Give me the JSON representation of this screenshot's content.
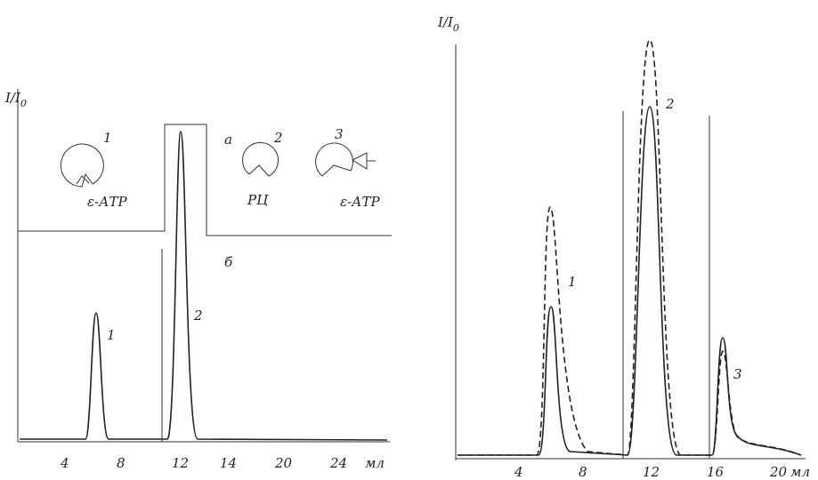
{
  "left_panel": {
    "y_label": "I/I",
    "y_label_sub": "0",
    "panel_a_label": "а",
    "panel_b_label": "б",
    "schemes": [
      {
        "number": "1",
        "label": "ε-АТР"
      },
      {
        "number": "2",
        "label": "РЦ"
      },
      {
        "number": "3",
        "label": "ε-АТР"
      }
    ],
    "peak_labels": [
      "1",
      "2"
    ],
    "x_ticks": [
      "4",
      "8",
      "12",
      "14",
      "20",
      "24"
    ],
    "x_unit": "мл"
  },
  "right_panel": {
    "y_label": "I/I",
    "y_label_sub": "0",
    "peak_labels": [
      "1",
      "2",
      "3"
    ],
    "x_ticks": [
      "4",
      "8",
      "12",
      "16",
      "20"
    ],
    "x_unit": "мл"
  }
}
